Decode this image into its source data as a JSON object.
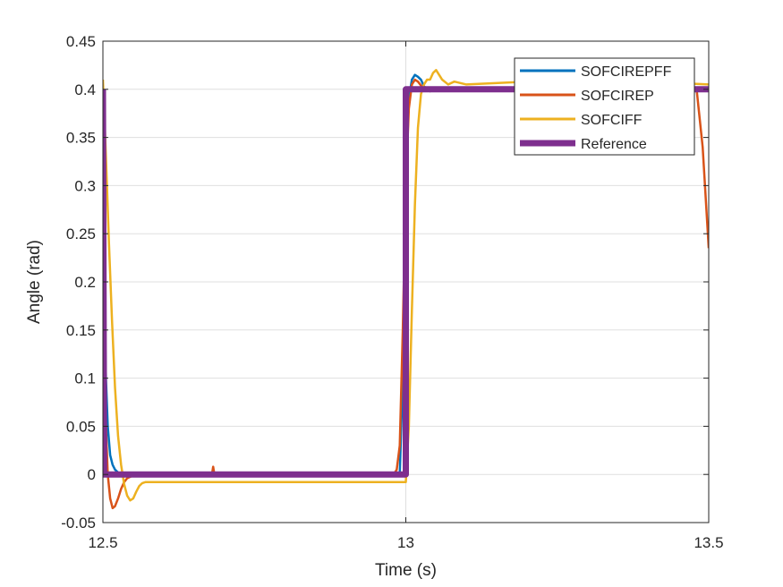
{
  "chart_data": {
    "type": "line",
    "title": "",
    "xlabel": "Time (s)",
    "ylabel": "Angle (rad)",
    "xlim": [
      12.5,
      13.5
    ],
    "ylim": [
      -0.05,
      0.45
    ],
    "xticks": [
      12.5,
      13,
      13.5
    ],
    "xtick_labels": [
      "12.5",
      "13",
      "13.5"
    ],
    "yticks": [
      -0.05,
      0,
      0.05,
      0.1,
      0.15,
      0.2,
      0.25,
      0.3,
      0.35,
      0.4,
      0.45
    ],
    "ytick_labels": [
      "-0.05",
      "0",
      "0.05",
      "0.1",
      "0.15",
      "0.2",
      "0.25",
      "0.3",
      "0.35",
      "0.4",
      "0.45"
    ],
    "grid": true,
    "legend_position": "top-right",
    "series": [
      {
        "name": "SOFCIREPFF",
        "color": "#0072BD",
        "x": [
          12.5,
          12.502,
          12.505,
          12.508,
          12.512,
          12.516,
          12.52,
          12.525,
          12.53,
          12.54,
          12.6,
          12.8,
          12.99,
          12.995,
          13.0,
          13.005,
          13.01,
          13.015,
          13.02,
          13.025,
          13.03,
          13.04,
          13.05,
          13.06,
          13.08,
          13.1,
          13.2,
          13.3,
          13.4,
          13.48,
          13.5
        ],
        "y": [
          0.4,
          0.2,
          0.1,
          0.05,
          0.02,
          0.01,
          0.005,
          0.002,
          0.0,
          0.0,
          0.0,
          0.0,
          0.0,
          0.1,
          0.3,
          0.39,
          0.41,
          0.415,
          0.413,
          0.41,
          0.403,
          0.398,
          0.4,
          0.399,
          0.4,
          0.4,
          0.4,
          0.4,
          0.4,
          0.4,
          0.4
        ]
      },
      {
        "name": "SOFCIREP",
        "color": "#D95319",
        "x": [
          12.5,
          12.502,
          12.505,
          12.508,
          12.512,
          12.516,
          12.52,
          12.525,
          12.53,
          12.535,
          12.54,
          12.55,
          12.56,
          12.57,
          12.6,
          12.68,
          12.682,
          12.684,
          12.8,
          12.98,
          12.985,
          12.99,
          12.995,
          13.0,
          13.005,
          13.01,
          13.015,
          13.02,
          13.03,
          13.04,
          13.06,
          13.1,
          13.2,
          13.3,
          13.4,
          13.48,
          13.49,
          13.5
        ],
        "y": [
          0.4,
          0.15,
          0.05,
          0.0,
          -0.025,
          -0.035,
          -0.033,
          -0.025,
          -0.015,
          -0.008,
          -0.004,
          -0.001,
          0.0,
          0.0,
          0.0,
          0.0,
          0.008,
          0.0,
          0.0,
          0.0,
          0.005,
          0.03,
          0.15,
          0.3,
          0.38,
          0.405,
          0.41,
          0.408,
          0.4,
          0.398,
          0.4,
          0.4,
          0.4,
          0.4,
          0.4,
          0.4,
          0.34,
          0.235
        ]
      },
      {
        "name": "SOFCIFF",
        "color": "#EDB120",
        "x": [
          12.5,
          12.505,
          12.51,
          12.515,
          12.52,
          12.525,
          12.53,
          12.535,
          12.54,
          12.545,
          12.55,
          12.555,
          12.56,
          12.565,
          12.57,
          12.6,
          12.8,
          13.0,
          13.005,
          13.01,
          13.015,
          13.02,
          13.025,
          13.03,
          13.035,
          13.04,
          13.045,
          13.05,
          13.06,
          13.07,
          13.08,
          13.1,
          13.2,
          13.3,
          13.4,
          13.5
        ],
        "y": [
          0.41,
          0.33,
          0.24,
          0.16,
          0.09,
          0.04,
          0.01,
          -0.01,
          -0.022,
          -0.027,
          -0.025,
          -0.018,
          -0.012,
          -0.009,
          -0.008,
          -0.008,
          -0.008,
          -0.008,
          0.05,
          0.17,
          0.28,
          0.36,
          0.395,
          0.405,
          0.41,
          0.41,
          0.417,
          0.42,
          0.41,
          0.405,
          0.408,
          0.405,
          0.408,
          0.405,
          0.408,
          0.405
        ]
      },
      {
        "name": "Reference",
        "color": "#7E2F8E",
        "x": [
          12.5,
          12.5,
          12.502,
          13.0,
          13.0,
          13.5
        ],
        "y": [
          0.4,
          0.4,
          0.0,
          0.0,
          0.4,
          0.4
        ]
      }
    ]
  }
}
